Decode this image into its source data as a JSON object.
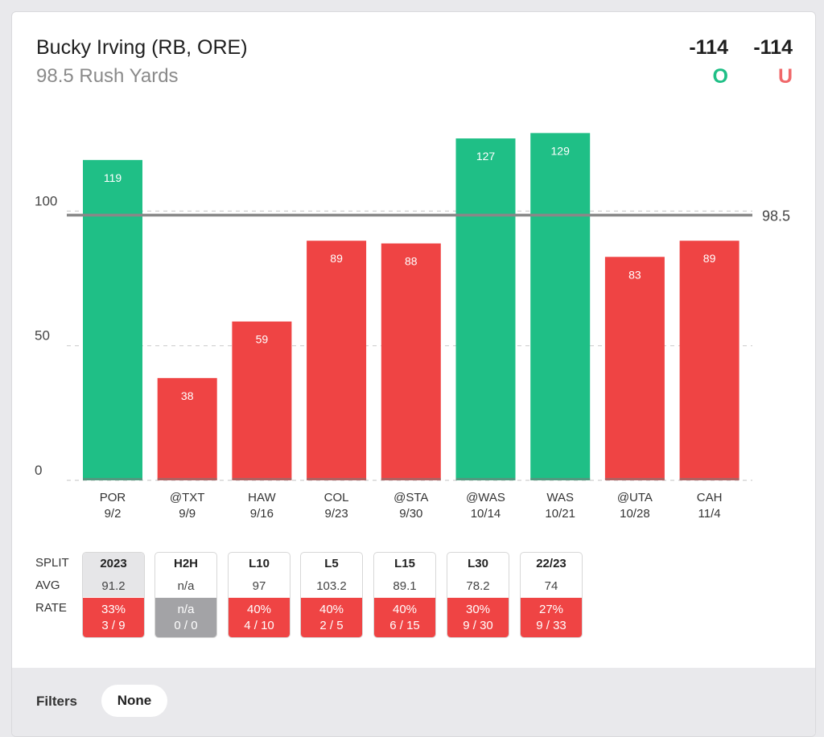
{
  "header": {
    "player": "Bucky Irving (RB, ORE)",
    "prop": "98.5 Rush Yards",
    "over_odds": "-114",
    "under_odds": "-114",
    "over_label": "O",
    "under_label": "U"
  },
  "chart_data": {
    "type": "bar",
    "categories": [
      "POR",
      "@TXT",
      "HAW",
      "COL",
      "@STA",
      "@WAS",
      "WAS",
      "@UTA",
      "CAH"
    ],
    "dates": [
      "9/2",
      "9/9",
      "9/16",
      "9/23",
      "9/30",
      "10/14",
      "10/21",
      "10/28",
      "11/4"
    ],
    "values": [
      119,
      38,
      59,
      89,
      88,
      127,
      129,
      83,
      89
    ],
    "line": 98.5,
    "line_label": "98.5",
    "yticks": [
      "0",
      "50",
      "100"
    ],
    "ytick_values": [
      0,
      50,
      100
    ],
    "ylim": [
      0,
      130
    ],
    "colors": {
      "over": "#1fbf86",
      "under": "#ef4444"
    },
    "grid": true
  },
  "splits": {
    "labels": {
      "split": "SPLIT",
      "avg": "AVG",
      "rate": "RATE"
    },
    "items": [
      {
        "period": "2023",
        "avg": "91.2",
        "pct": "33%",
        "frac": "3 / 9",
        "selected": true
      },
      {
        "period": "H2H",
        "avg": "n/a",
        "pct": "n/a",
        "frac": "0 / 0",
        "na": true
      },
      {
        "period": "L10",
        "avg": "97",
        "pct": "40%",
        "frac": "4 / 10"
      },
      {
        "period": "L5",
        "avg": "103.2",
        "pct": "40%",
        "frac": "2 / 5"
      },
      {
        "period": "L15",
        "avg": "89.1",
        "pct": "40%",
        "frac": "6 / 15"
      },
      {
        "period": "L30",
        "avg": "78.2",
        "pct": "30%",
        "frac": "9 / 30"
      },
      {
        "period": "22/23",
        "avg": "74",
        "pct": "27%",
        "frac": "9 / 33"
      }
    ]
  },
  "filters": {
    "label": "Filters",
    "value": "None"
  }
}
